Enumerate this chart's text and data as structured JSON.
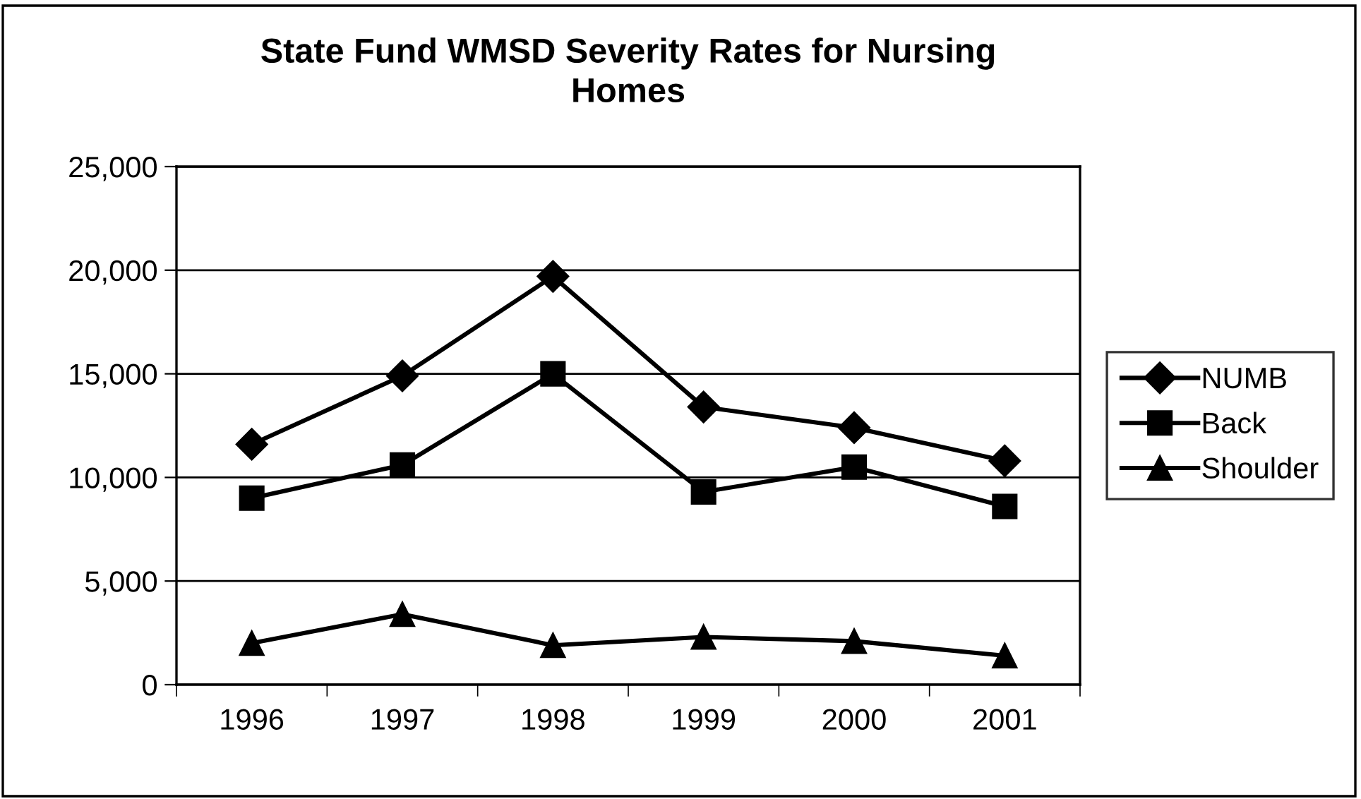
{
  "chart_data": {
    "type": "line",
    "title": "State Fund WMSD Severity Rates for Nursing\nHomes",
    "categories": [
      "1996",
      "1997",
      "1998",
      "1999",
      "2000",
      "2001"
    ],
    "series": [
      {
        "name": "NUMB",
        "color": "#000000",
        "marker": "diamond",
        "values": [
          11600,
          14900,
          19700,
          13400,
          12400,
          10800
        ]
      },
      {
        "name": "Back",
        "color": "#000000",
        "marker": "square",
        "values": [
          9000,
          10600,
          15000,
          9300,
          10500,
          8600
        ]
      },
      {
        "name": "Shoulder",
        "color": "#000000",
        "marker": "triangle",
        "values": [
          2000,
          3400,
          1900,
          2300,
          2100,
          1400
        ]
      }
    ],
    "ylim": [
      0,
      25000
    ],
    "yticks": [
      {
        "value": 0,
        "label": "0"
      },
      {
        "value": 5000,
        "label": "5,000"
      },
      {
        "value": 10000,
        "label": "10,000"
      },
      {
        "value": 15000,
        "label": "15,000"
      },
      {
        "value": 20000,
        "label": "20,000"
      },
      {
        "value": 25000,
        "label": "25,000"
      }
    ],
    "grid": "y",
    "legend": "right",
    "line_style": "solid"
  }
}
